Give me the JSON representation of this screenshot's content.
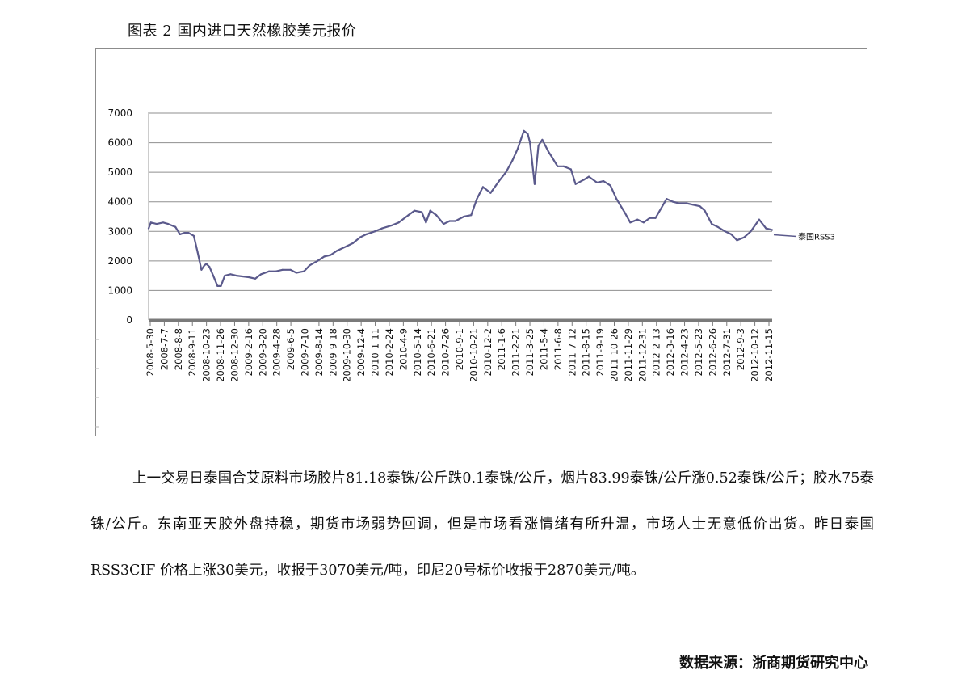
{
  "caption": "图表 2  国内进口天然橡胶美元报价",
  "chart_data": {
    "type": "line",
    "title": "",
    "xlabel": "",
    "ylabel": "",
    "ylim": [
      0,
      7000
    ],
    "yticks": [
      0,
      1000,
      2000,
      3000,
      4000,
      5000,
      6000,
      7000
    ],
    "grid": true,
    "legend_position": "right",
    "line_color": "#5b5a8c",
    "x_tick_labels": [
      "2008-5-30",
      "2008-7-7",
      "2008-8-8",
      "2008-9-11",
      "2008-10-23",
      "2008-11-26",
      "2008-12-30",
      "2009-2-16",
      "2009-3-20",
      "2009-4-28",
      "2009-6-5",
      "2009-7-10",
      "2009-8-14",
      "2009-9-18",
      "2009-10-30",
      "2009-12-4",
      "2010-1-11",
      "2010-2-24",
      "2010-4-9",
      "2010-5-14",
      "2010-6-21",
      "2010-7-26",
      "2010-9-1",
      "2010-10-21",
      "2010-12-2",
      "2011-1-6",
      "2011-2-21",
      "2011-3-25",
      "2011-5-4",
      "2011-6-8",
      "2011-7-12",
      "2011-8-15",
      "2011-9-19",
      "2011-10-26",
      "2011-11-29",
      "2011-12-31",
      "2012-2-13",
      "2012-3-16",
      "2012-4-23",
      "2012-5-23",
      "2012-6-26",
      "2012-7-31",
      "2012-9-3",
      "2012-10-12",
      "2012-11-15"
    ],
    "series": [
      {
        "name": "泰国RSS3",
        "x": [
          "2008-5-30",
          "2008-6-5",
          "2008-6-20",
          "2008-7-7",
          "2008-7-20",
          "2008-8-8",
          "2008-8-20",
          "2008-9-1",
          "2008-9-11",
          "2008-9-25",
          "2008-10-5",
          "2008-10-15",
          "2008-10-23",
          "2008-10-28",
          "2008-11-5",
          "2008-11-15",
          "2008-11-26",
          "2008-12-5",
          "2008-12-15",
          "2008-12-30",
          "2009-1-15",
          "2009-2-16",
          "2009-3-5",
          "2009-3-20",
          "2009-4-10",
          "2009-4-28",
          "2009-5-15",
          "2009-6-5",
          "2009-6-20",
          "2009-7-10",
          "2009-7-25",
          "2009-8-14",
          "2009-9-1",
          "2009-9-18",
          "2009-10-5",
          "2009-10-30",
          "2009-11-15",
          "2009-12-4",
          "2009-12-20",
          "2010-1-11",
          "2010-1-30",
          "2010-2-24",
          "2010-3-15",
          "2010-4-9",
          "2010-4-25",
          "2010-5-14",
          "2010-5-25",
          "2010-6-5",
          "2010-6-21",
          "2010-7-10",
          "2010-7-26",
          "2010-8-10",
          "2010-9-1",
          "2010-9-20",
          "2010-10-5",
          "2010-10-21",
          "2010-11-10",
          "2010-12-2",
          "2010-12-20",
          "2011-1-6",
          "2011-1-20",
          "2011-2-5",
          "2011-2-15",
          "2011-2-21",
          "2011-3-5",
          "2011-3-15",
          "2011-3-25",
          "2011-4-10",
          "2011-4-20",
          "2011-5-4",
          "2011-5-20",
          "2011-6-8",
          "2011-6-20",
          "2011-7-12",
          "2011-7-25",
          "2011-8-15",
          "2011-9-1",
          "2011-9-19",
          "2011-10-5",
          "2011-10-26",
          "2011-11-10",
          "2011-11-29",
          "2011-12-15",
          "2011-12-31",
          "2012-1-15",
          "2012-2-13",
          "2012-3-1",
          "2012-3-16",
          "2012-4-5",
          "2012-4-23",
          "2012-5-10",
          "2012-5-23",
          "2012-6-10",
          "2012-6-26",
          "2012-7-15",
          "2012-7-31",
          "2012-8-15",
          "2012-9-3",
          "2012-9-20",
          "2012-10-12",
          "2012-10-30",
          "2012-11-15"
        ],
        "values": [
          3100,
          3300,
          3250,
          3300,
          3250,
          3150,
          2900,
          2950,
          2950,
          2850,
          2300,
          1700,
          1850,
          1900,
          1800,
          1500,
          1150,
          1150,
          1500,
          1550,
          1500,
          1450,
          1400,
          1550,
          1650,
          1650,
          1700,
          1700,
          1600,
          1650,
          1850,
          2000,
          2150,
          2200,
          2350,
          2500,
          2600,
          2800,
          2900,
          3000,
          3100,
          3200,
          3300,
          3550,
          3700,
          3650,
          3300,
          3700,
          3550,
          3250,
          3350,
          3350,
          3500,
          3550,
          4100,
          4500,
          4300,
          4700,
          5000,
          5400,
          5800,
          6400,
          6300,
          6000,
          4600,
          5900,
          6100,
          5700,
          5500,
          5200,
          5200,
          5100,
          4600,
          4750,
          4850,
          4650,
          4700,
          4550,
          4100,
          3650,
          3300,
          3400,
          3300,
          3450,
          3450,
          4100,
          4000,
          3950,
          3950,
          3900,
          3850,
          3700,
          3250,
          3150,
          3000,
          2900,
          2700,
          2800,
          3000,
          3400,
          3100,
          3050
        ]
      }
    ]
  },
  "paragraph": "上一交易日泰国合艾原料市场胶片81.18泰铢/公斤跌0.1泰铢/公斤，烟片83.99泰铢/公斤涨0.52泰铢/公斤；胶水75泰铢/公斤。东南亚天胶外盘持稳，期货市场弱势回调，但是市场看涨情绪有所升温，市场人士无意低价出货。昨日泰国 RSS3CIF 价格上涨30美元，收报于3070美元/吨，印尼20号标价收报于2870美元/吨。",
  "source": "数据来源：浙商期货研究中心"
}
